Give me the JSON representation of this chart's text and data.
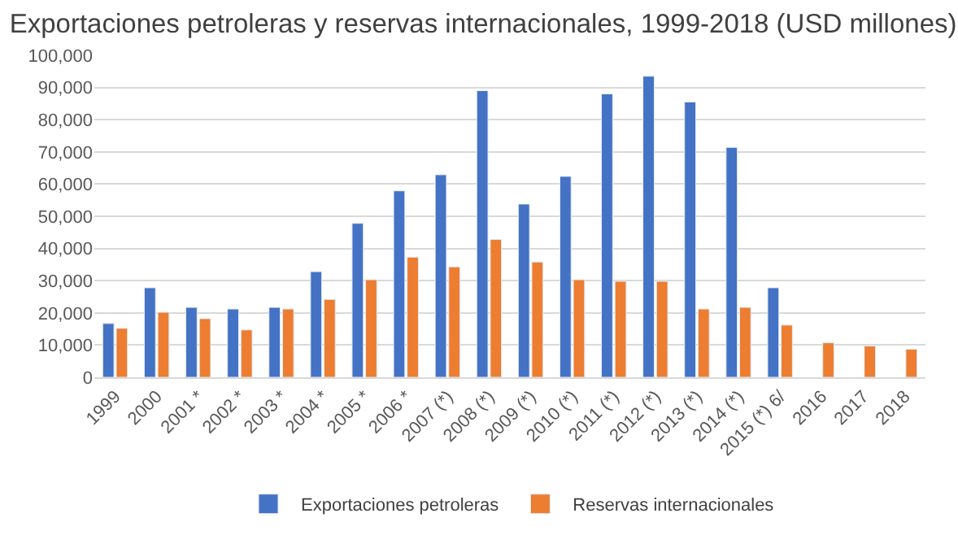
{
  "chart_data": {
    "type": "bar",
    "title": "Exportaciones petroleras y reservas internacionales, 1999-2018 (USD millones)",
    "categories": [
      "1999",
      "2000",
      "2001 *",
      "2002 *",
      "2003 *",
      "2004 *",
      "2005 *",
      "2006 *",
      "2007 (*)",
      "2008 (*)",
      "2009 (*)",
      "2010 (*)",
      "2011 (*)",
      "2012 (*)",
      "2013 (*)",
      "2014 (*)",
      "2015 (*) 6/",
      "2016",
      "2017",
      "2018"
    ],
    "series": [
      {
        "name": "Exportaciones petroleras",
        "color": "#4472c4",
        "values": [
          16700,
          27800,
          21700,
          21200,
          21700,
          32800,
          47800,
          57900,
          62900,
          89000,
          53800,
          62400,
          88000,
          93500,
          85500,
          71400,
          27800,
          null,
          null,
          null
        ]
      },
      {
        "name": "Reservas internacionales",
        "color": "#ed7d31",
        "values": [
          15200,
          20200,
          18200,
          14700,
          21200,
          24200,
          30300,
          37300,
          34300,
          42800,
          35800,
          30300,
          29800,
          29800,
          21200,
          21700,
          16200,
          10700,
          9700,
          8700
        ]
      }
    ],
    "ylim": [
      0,
      100000
    ],
    "yticks": [
      {
        "value": 0,
        "label": "0"
      },
      {
        "value": 10000,
        "label": "10,000"
      },
      {
        "value": 20000,
        "label": "20,000"
      },
      {
        "value": 30000,
        "label": "30,000"
      },
      {
        "value": 40000,
        "label": "40,000"
      },
      {
        "value": 50000,
        "label": "50,000"
      },
      {
        "value": 60000,
        "label": "60,000"
      },
      {
        "value": 70000,
        "label": "70,000"
      },
      {
        "value": 80000,
        "label": "80,000"
      },
      {
        "value": 90000,
        "label": "90,000"
      },
      {
        "value": 100000,
        "label": "100,000"
      }
    ],
    "grid": "y",
    "legend": "bottom"
  }
}
